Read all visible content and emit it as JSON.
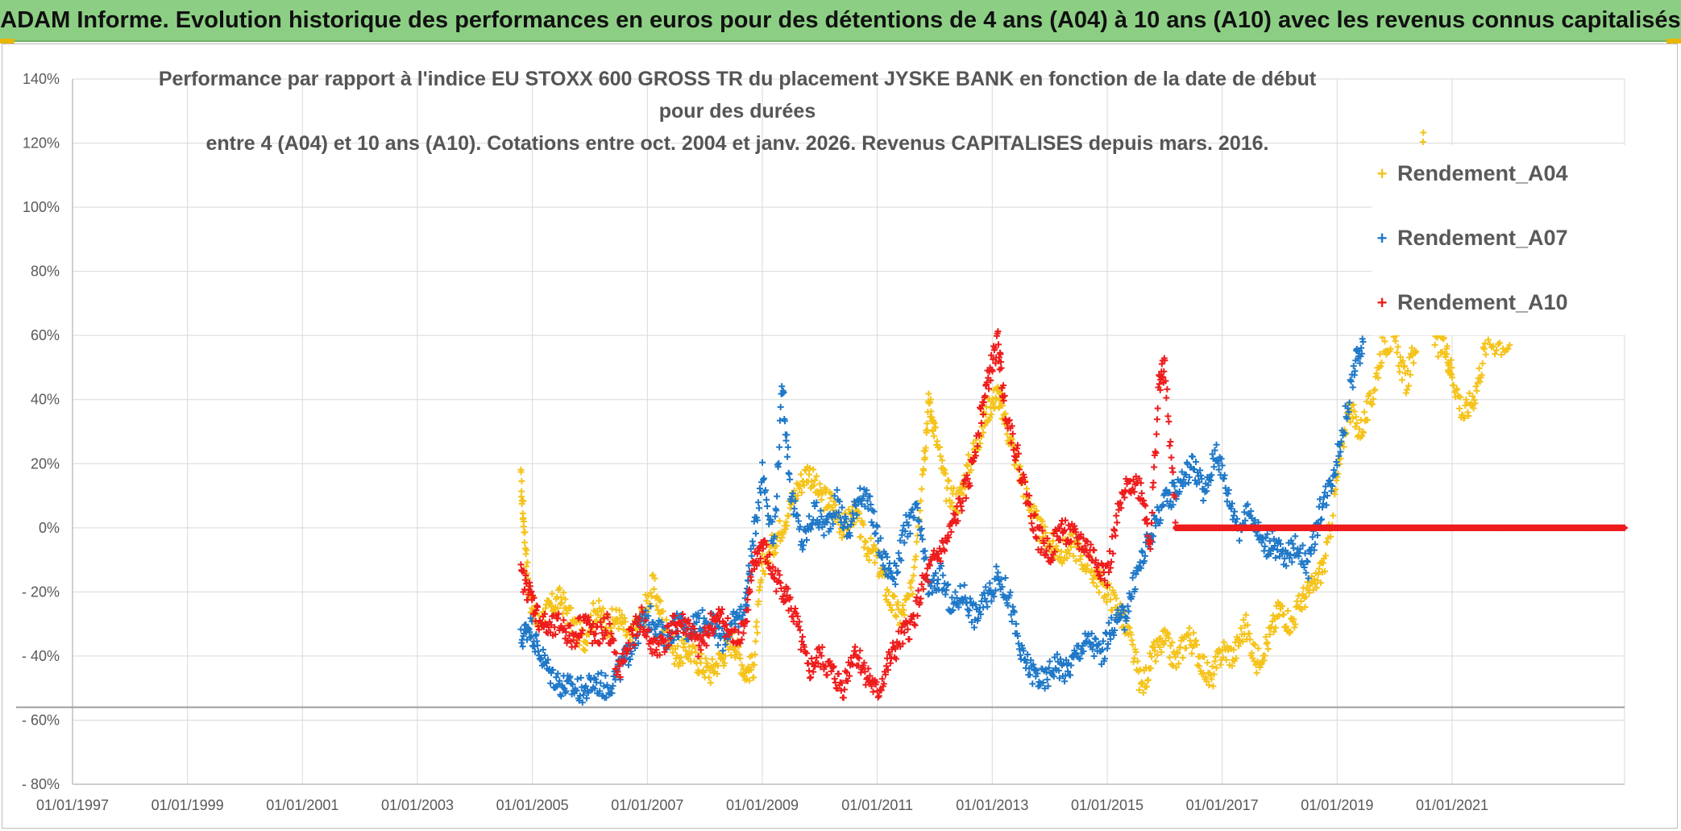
{
  "banner": {
    "title": "ADAM Informe. Evolution historique des performances en euros pour des détentions de 4 ans (A04) à 10 ans (A10) avec les revenus connus capitalisés"
  },
  "chart_data": {
    "type": "scatter",
    "title_line1": "Performance par rapport à l'indice EU STOXX 600 GROSS TR  du placement JYSKE BANK en fonction de la date de début pour des durées",
    "title_line2": "entre 4 (A04) et 10 ans (A10). Cotations entre oct. 2004 et janv. 2026. Revenus CAPITALISES depuis mars. 2016.",
    "xlabel": "",
    "ylabel": "",
    "xlim": [
      1997.0,
      2024.0
    ],
    "ylim": [
      -80,
      140
    ],
    "grid": true,
    "legend_position": "top-right",
    "x_tick_labels": [
      "01/01/1997",
      "01/01/1999",
      "01/01/2001",
      "01/01/2003",
      "01/01/2005",
      "01/01/2007",
      "01/01/2009",
      "01/01/2011",
      "01/01/2013",
      "01/01/2015",
      "01/01/2017",
      "01/01/2019",
      "01/01/2021"
    ],
    "x_tick_values": [
      1997,
      1999,
      2001,
      2003,
      2005,
      2007,
      2009,
      2011,
      2013,
      2015,
      2017,
      2019,
      2021
    ],
    "y_tick_labels": [
      "140%",
      "120%",
      "100%",
      "80%",
      "60%",
      "40%",
      "20%",
      "0%",
      "- 20%",
      "- 40%",
      "- 60%",
      "- 80%"
    ],
    "y_tick_values": [
      140,
      120,
      100,
      80,
      60,
      40,
      20,
      0,
      -20,
      -40,
      -60,
      -80
    ],
    "reference_line_y": -56,
    "series": [
      {
        "name": "Rendement_A04",
        "color": "#f5c31a",
        "points": [
          [
            2004.8,
            15
          ],
          [
            2004.85,
            2
          ],
          [
            2004.95,
            -22
          ],
          [
            2005.1,
            -30
          ],
          [
            2005.3,
            -25
          ],
          [
            2005.5,
            -22
          ],
          [
            2005.7,
            -30
          ],
          [
            2005.9,
            -35
          ],
          [
            2006.1,
            -25
          ],
          [
            2006.3,
            -30
          ],
          [
            2006.5,
            -28
          ],
          [
            2006.7,
            -35
          ],
          [
            2006.9,
            -28
          ],
          [
            2007.1,
            -18
          ],
          [
            2007.3,
            -30
          ],
          [
            2007.5,
            -40
          ],
          [
            2007.7,
            -38
          ],
          [
            2007.9,
            -42
          ],
          [
            2008.1,
            -45
          ],
          [
            2008.3,
            -40
          ],
          [
            2008.5,
            -35
          ],
          [
            2008.7,
            -45
          ],
          [
            2008.85,
            -43
          ],
          [
            2009.0,
            -12
          ],
          [
            2009.2,
            -5
          ],
          [
            2009.4,
            3
          ],
          [
            2009.6,
            12
          ],
          [
            2009.8,
            18
          ],
          [
            2010.0,
            10
          ],
          [
            2010.2,
            8
          ],
          [
            2010.4,
            0
          ],
          [
            2010.6,
            5
          ],
          [
            2010.8,
            -5
          ],
          [
            2011.0,
            -10
          ],
          [
            2011.2,
            -22
          ],
          [
            2011.4,
            -28
          ],
          [
            2011.6,
            -20
          ],
          [
            2011.8,
            20
          ],
          [
            2011.9,
            40
          ],
          [
            2012.0,
            30
          ],
          [
            2012.2,
            12
          ],
          [
            2012.4,
            8
          ],
          [
            2012.6,
            20
          ],
          [
            2012.8,
            30
          ],
          [
            2012.95,
            38
          ],
          [
            2013.1,
            42
          ],
          [
            2013.2,
            35
          ],
          [
            2013.4,
            22
          ],
          [
            2013.6,
            10
          ],
          [
            2013.8,
            0
          ],
          [
            2014.0,
            -5
          ],
          [
            2014.2,
            -8
          ],
          [
            2014.4,
            -5
          ],
          [
            2014.6,
            -10
          ],
          [
            2014.8,
            -15
          ],
          [
            2015.0,
            -20
          ],
          [
            2015.2,
            -25
          ],
          [
            2015.4,
            -35
          ],
          [
            2015.6,
            -50
          ],
          [
            2015.8,
            -40
          ],
          [
            2016.0,
            -35
          ],
          [
            2016.2,
            -42
          ],
          [
            2016.4,
            -33
          ],
          [
            2016.6,
            -40
          ],
          [
            2016.8,
            -48
          ],
          [
            2017.0,
            -38
          ],
          [
            2017.2,
            -40
          ],
          [
            2017.4,
            -30
          ],
          [
            2017.6,
            -42
          ],
          [
            2017.8,
            -35
          ],
          [
            2018.0,
            -25
          ],
          [
            2018.2,
            -30
          ],
          [
            2018.4,
            -22
          ],
          [
            2018.6,
            -18
          ],
          [
            2018.8,
            -10
          ],
          [
            2019.0,
            15
          ],
          [
            2019.2,
            38
          ],
          [
            2019.4,
            30
          ],
          [
            2019.6,
            40
          ],
          [
            2019.8,
            58
          ],
          [
            2020.0,
            58
          ],
          [
            2020.2,
            45
          ],
          [
            2020.4,
            60
          ],
          [
            2020.5,
            121
          ],
          [
            2020.7,
            58
          ],
          [
            2020.9,
            55
          ],
          [
            2021.0,
            48
          ],
          [
            2021.2,
            35
          ],
          [
            2021.4,
            42
          ],
          [
            2021.6,
            58
          ],
          [
            2022.0,
            57
          ]
        ]
      },
      {
        "name": "Rendement_A07",
        "color": "#1f78c8",
        "points": [
          [
            2004.8,
            -35
          ],
          [
            2004.95,
            -30
          ],
          [
            2005.1,
            -38
          ],
          [
            2005.3,
            -45
          ],
          [
            2005.5,
            -49
          ],
          [
            2005.7,
            -50
          ],
          [
            2005.9,
            -51
          ],
          [
            2006.1,
            -48
          ],
          [
            2006.3,
            -50
          ],
          [
            2006.5,
            -45
          ],
          [
            2006.7,
            -38
          ],
          [
            2006.9,
            -30
          ],
          [
            2007.1,
            -28
          ],
          [
            2007.3,
            -35
          ],
          [
            2007.5,
            -30
          ],
          [
            2007.7,
            -32
          ],
          [
            2007.9,
            -28
          ],
          [
            2008.1,
            -30
          ],
          [
            2008.3,
            -35
          ],
          [
            2008.5,
            -30
          ],
          [
            2008.7,
            -25
          ],
          [
            2008.8,
            -10
          ],
          [
            2009.0,
            18
          ],
          [
            2009.2,
            -5
          ],
          [
            2009.35,
            45
          ],
          [
            2009.5,
            10
          ],
          [
            2009.7,
            -5
          ],
          [
            2009.9,
            5
          ],
          [
            2010.1,
            0
          ],
          [
            2010.3,
            8
          ],
          [
            2010.5,
            -2
          ],
          [
            2010.7,
            12
          ],
          [
            2010.9,
            5
          ],
          [
            2011.1,
            -10
          ],
          [
            2011.3,
            -15
          ],
          [
            2011.5,
            0
          ],
          [
            2011.7,
            5
          ],
          [
            2011.9,
            -20
          ],
          [
            2012.1,
            -15
          ],
          [
            2012.3,
            -25
          ],
          [
            2012.5,
            -20
          ],
          [
            2012.7,
            -28
          ],
          [
            2012.9,
            -22
          ],
          [
            2013.1,
            -15
          ],
          [
            2013.3,
            -22
          ],
          [
            2013.5,
            -40
          ],
          [
            2013.7,
            -45
          ],
          [
            2013.9,
            -48
          ],
          [
            2014.1,
            -42
          ],
          [
            2014.3,
            -45
          ],
          [
            2014.5,
            -38
          ],
          [
            2014.7,
            -35
          ],
          [
            2014.9,
            -40
          ],
          [
            2015.1,
            -30
          ],
          [
            2015.3,
            -28
          ],
          [
            2015.5,
            -15
          ],
          [
            2015.7,
            -5
          ],
          [
            2015.9,
            5
          ],
          [
            2016.1,
            10
          ],
          [
            2016.3,
            15
          ],
          [
            2016.5,
            20
          ],
          [
            2016.7,
            10
          ],
          [
            2016.9,
            25
          ],
          [
            2017.1,
            10
          ],
          [
            2017.3,
            0
          ],
          [
            2017.5,
            5
          ],
          [
            2017.7,
            -5
          ],
          [
            2017.9,
            -5
          ],
          [
            2018.1,
            -10
          ],
          [
            2018.3,
            -5
          ],
          [
            2018.5,
            -12
          ],
          [
            2018.7,
            5
          ],
          [
            2018.9,
            15
          ],
          [
            2019.1,
            30
          ],
          [
            2019.3,
            50
          ],
          [
            2019.45,
            58
          ]
        ]
      },
      {
        "name": "Rendement_A10",
        "color": "#ee1c1c",
        "points": [
          [
            2004.8,
            -15
          ],
          [
            2004.95,
            -20
          ],
          [
            2005.1,
            -28
          ],
          [
            2005.3,
            -32
          ],
          [
            2005.5,
            -30
          ],
          [
            2005.7,
            -35
          ],
          [
            2005.9,
            -28
          ],
          [
            2006.1,
            -35
          ],
          [
            2006.3,
            -30
          ],
          [
            2006.5,
            -45
          ],
          [
            2006.7,
            -35
          ],
          [
            2006.9,
            -28
          ],
          [
            2007.1,
            -38
          ],
          [
            2007.3,
            -35
          ],
          [
            2007.5,
            -30
          ],
          [
            2007.7,
            -30
          ],
          [
            2007.9,
            -38
          ],
          [
            2008.1,
            -30
          ],
          [
            2008.3,
            -28
          ],
          [
            2008.5,
            -35
          ],
          [
            2008.7,
            -30
          ],
          [
            2008.85,
            -12
          ],
          [
            2009.0,
            -5
          ],
          [
            2009.2,
            -15
          ],
          [
            2009.4,
            -20
          ],
          [
            2009.6,
            -30
          ],
          [
            2009.8,
            -45
          ],
          [
            2010.0,
            -40
          ],
          [
            2010.2,
            -45
          ],
          [
            2010.4,
            -50
          ],
          [
            2010.6,
            -38
          ],
          [
            2010.8,
            -45
          ],
          [
            2011.0,
            -52
          ],
          [
            2011.2,
            -42
          ],
          [
            2011.4,
            -35
          ],
          [
            2011.6,
            -30
          ],
          [
            2011.8,
            -18
          ],
          [
            2012.0,
            -10
          ],
          [
            2012.2,
            -5
          ],
          [
            2012.4,
            5
          ],
          [
            2012.6,
            15
          ],
          [
            2012.8,
            35
          ],
          [
            2012.95,
            48
          ],
          [
            2013.1,
            58
          ],
          [
            2013.2,
            40
          ],
          [
            2013.4,
            25
          ],
          [
            2013.6,
            10
          ],
          [
            2013.8,
            -3
          ],
          [
            2014.0,
            -8
          ],
          [
            2014.2,
            0
          ],
          [
            2014.4,
            -3
          ],
          [
            2014.6,
            -5
          ],
          [
            2014.8,
            -10
          ],
          [
            2015.0,
            -15
          ],
          [
            2015.2,
            5
          ],
          [
            2015.4,
            15
          ],
          [
            2015.6,
            12
          ],
          [
            2015.75,
            -5
          ],
          [
            2015.9,
            45
          ],
          [
            2016.0,
            50
          ],
          [
            2016.2,
            0
          ],
          [
            2017.0,
            0
          ],
          [
            2018.0,
            0
          ],
          [
            2019.0,
            0
          ],
          [
            2020.0,
            0
          ],
          [
            2021.0,
            0
          ],
          [
            2022.0,
            0
          ],
          [
            2023.0,
            0
          ],
          [
            2024.0,
            0
          ]
        ]
      }
    ]
  }
}
